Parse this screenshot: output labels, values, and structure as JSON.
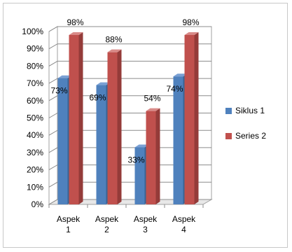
{
  "chart_data": {
    "type": "bar",
    "categories": [
      [
        "Aspek",
        "1"
      ],
      [
        "Aspek",
        "2"
      ],
      [
        "Aspek",
        "3"
      ],
      [
        "Aspek",
        "4"
      ]
    ],
    "series": [
      {
        "name": "Siklus 1",
        "values": [
          73,
          69,
          33,
          74
        ],
        "color": "#4f81bd",
        "side": "#3a6494",
        "top": "#7aa0d4"
      },
      {
        "name": "Series 2",
        "values": [
          98,
          88,
          54,
          98
        ],
        "color": "#c0504d",
        "side": "#943b39",
        "top": "#d98a88"
      }
    ],
    "ylim": [
      0,
      100
    ],
    "yticks": [
      "0%",
      "10%",
      "20%",
      "30%",
      "40%",
      "50%",
      "60%",
      "70%",
      "80%",
      "90%",
      "100%"
    ],
    "value_suffix": "%",
    "grid": true,
    "legend_position": "right",
    "style": "3d-clustered-column"
  }
}
